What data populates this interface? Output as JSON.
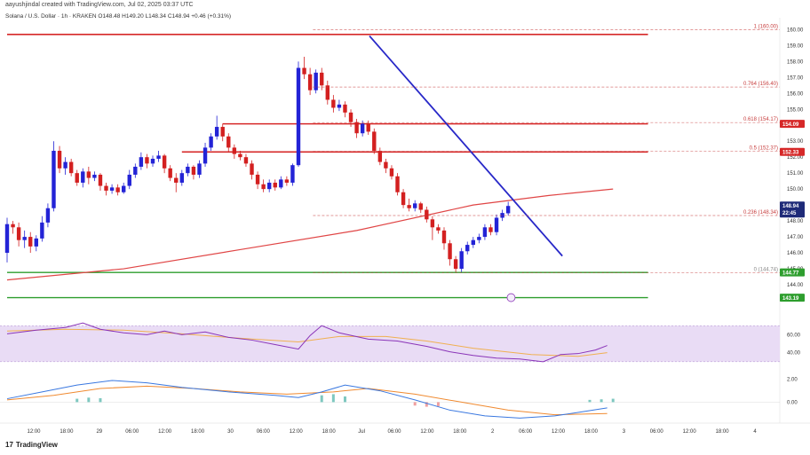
{
  "header": {
    "created_by": "aayushjindal created with TradingView.com, Jul 02, 2025 03:37 UTC",
    "symbol": "Solana / U.S. Dollar · 1h · KRAKEN",
    "ohlc": "O148.48 H149.20 L148.34 C148.94 +0.46 (+0.31%)"
  },
  "branding": {
    "logo": "17",
    "name": "TradingView"
  },
  "colors": {
    "up": "#2323d6",
    "down": "#d32020",
    "ma": "#e04545",
    "resistance": "#d62828",
    "support": "#2e9e2e",
    "trendline": "#2828c8",
    "fib": "#c84040",
    "rsi_band": "#e9dcf5",
    "rsi_line": "#8a34b8",
    "rsi_ma": "#f0b050",
    "macd_line": "#3a78e0",
    "signal_line": "#f08a30",
    "tag_dark": "#1e2a78"
  },
  "chart_data": {
    "type": "candlestick",
    "x_ticks": [
      "12:00",
      "18:00",
      "29",
      "06:00",
      "12:00",
      "18:00",
      "30",
      "06:00",
      "12:00",
      "18:00",
      "Jul",
      "06:00",
      "12:00",
      "18:00",
      "2",
      "06:00",
      "12:00",
      "18:00",
      "3",
      "06:00",
      "12:00",
      "18:00",
      "4"
    ],
    "y_ticks": [
      160.0,
      159.0,
      158.0,
      157.0,
      156.0,
      155.0,
      154.0,
      153.0,
      152.0,
      151.0,
      150.0,
      149.0,
      148.0,
      147.0,
      146.0,
      145.0,
      144.0
    ],
    "y_tick_labels": [
      "160.00",
      "159.00",
      "158.00",
      "157.00",
      "156.00",
      "155.00",
      "154.00",
      "153.00",
      "152.00",
      "151.00",
      "150.00",
      "149.00",
      "148.00",
      "147.00",
      "146.00",
      "145.00",
      "144.00"
    ],
    "ylim": [
      143.5,
      160.3
    ],
    "candles": [
      [
        146.0,
        147.8,
        148.2,
        145.4
      ],
      [
        147.8,
        147.6,
        148.0,
        147.2
      ],
      [
        147.6,
        146.8,
        147.9,
        146.4
      ],
      [
        146.8,
        147.0,
        147.4,
        146.3
      ],
      [
        147.0,
        146.4,
        147.3,
        146.0
      ],
      [
        146.4,
        146.9,
        147.1,
        146.1
      ],
      [
        146.9,
        147.9,
        148.3,
        146.7
      ],
      [
        147.9,
        148.8,
        149.1,
        147.6
      ],
      [
        148.8,
        152.4,
        153.0,
        148.6
      ],
      [
        152.4,
        151.3,
        152.7,
        151.0
      ],
      [
        151.3,
        151.7,
        152.0,
        150.9
      ],
      [
        151.7,
        151.0,
        151.9,
        150.8
      ],
      [
        151.0,
        150.4,
        151.2,
        150.2
      ],
      [
        150.4,
        151.1,
        151.3,
        150.1
      ],
      [
        151.1,
        150.7,
        151.4,
        150.3
      ],
      [
        150.7,
        150.9,
        151.1,
        150.5
      ],
      [
        150.9,
        150.2,
        151.0,
        149.9
      ],
      [
        150.2,
        149.9,
        150.4,
        149.6
      ],
      [
        149.9,
        150.1,
        150.3,
        149.7
      ],
      [
        150.1,
        149.8,
        150.3,
        149.6
      ],
      [
        149.8,
        150.2,
        150.4,
        149.7
      ],
      [
        150.2,
        150.9,
        151.2,
        150.0
      ],
      [
        150.9,
        151.4,
        151.6,
        150.7
      ],
      [
        151.4,
        152.0,
        152.3,
        151.2
      ],
      [
        152.0,
        151.6,
        152.2,
        151.3
      ],
      [
        151.6,
        151.9,
        152.1,
        151.4
      ],
      [
        151.9,
        152.1,
        152.4,
        151.7
      ],
      [
        152.1,
        151.3,
        152.2,
        151.0
      ],
      [
        151.3,
        150.7,
        151.5,
        150.5
      ],
      [
        150.7,
        150.4,
        151.0,
        149.8
      ],
      [
        150.4,
        151.0,
        151.2,
        150.2
      ],
      [
        151.0,
        151.4,
        151.6,
        150.8
      ],
      [
        151.4,
        150.9,
        151.5,
        150.6
      ],
      [
        150.9,
        151.6,
        151.8,
        150.7
      ],
      [
        151.6,
        152.6,
        152.9,
        151.4
      ],
      [
        152.6,
        153.3,
        153.5,
        152.4
      ],
      [
        153.3,
        153.9,
        154.6,
        153.1
      ],
      [
        153.9,
        153.3,
        154.1,
        153.0
      ],
      [
        153.3,
        152.6,
        153.5,
        152.3
      ],
      [
        152.6,
        152.2,
        152.8,
        151.9
      ],
      [
        152.2,
        152.0,
        152.4,
        151.8
      ],
      [
        152.0,
        151.6,
        152.2,
        151.4
      ],
      [
        151.6,
        150.9,
        151.8,
        150.6
      ],
      [
        150.9,
        150.3,
        151.1,
        150.0
      ],
      [
        150.3,
        150.0,
        150.6,
        149.8
      ],
      [
        150.0,
        150.4,
        150.6,
        149.8
      ],
      [
        150.4,
        150.1,
        150.6,
        149.9
      ],
      [
        150.1,
        150.6,
        150.8,
        150.0
      ],
      [
        150.6,
        150.4,
        150.8,
        150.2
      ],
      [
        150.4,
        151.5,
        151.6,
        150.2
      ],
      [
        151.5,
        157.6,
        158.0,
        151.4
      ],
      [
        157.6,
        157.2,
        158.3,
        156.9
      ],
      [
        157.2,
        156.2,
        157.6,
        155.9
      ],
      [
        156.2,
        157.3,
        157.5,
        156.0
      ],
      [
        157.3,
        156.5,
        157.6,
        156.2
      ],
      [
        156.5,
        155.6,
        156.8,
        155.3
      ],
      [
        155.6,
        155.1,
        155.9,
        154.8
      ],
      [
        155.1,
        155.3,
        155.6,
        154.9
      ],
      [
        155.3,
        154.8,
        155.5,
        154.5
      ],
      [
        154.8,
        154.2,
        155.0,
        153.9
      ],
      [
        154.2,
        153.5,
        154.4,
        153.2
      ],
      [
        153.5,
        154.1,
        154.3,
        153.3
      ],
      [
        154.1,
        153.6,
        154.3,
        153.4
      ],
      [
        153.6,
        152.4,
        153.8,
        152.2
      ],
      [
        152.4,
        151.7,
        152.6,
        151.5
      ],
      [
        151.7,
        151.3,
        151.9,
        151.0
      ],
      [
        151.3,
        150.8,
        151.5,
        150.6
      ],
      [
        150.8,
        149.8,
        151.0,
        149.6
      ],
      [
        149.8,
        149.0,
        150.0,
        148.8
      ],
      [
        149.0,
        148.8,
        149.4,
        148.6
      ],
      [
        148.8,
        149.1,
        149.3,
        148.6
      ],
      [
        149.1,
        148.7,
        149.2,
        148.5
      ],
      [
        148.7,
        148.1,
        148.9,
        147.9
      ],
      [
        148.1,
        147.6,
        148.3,
        146.8
      ],
      [
        147.6,
        147.4,
        147.8,
        147.2
      ],
      [
        147.4,
        146.6,
        147.6,
        146.2
      ],
      [
        146.6,
        145.6,
        146.8,
        145.2
      ],
      [
        145.6,
        145.0,
        145.8,
        144.8
      ],
      [
        145.0,
        146.1,
        146.3,
        144.8
      ],
      [
        146.1,
        146.5,
        146.7,
        145.9
      ],
      [
        146.5,
        146.8,
        147.0,
        146.3
      ],
      [
        146.8,
        147.0,
        147.2,
        146.6
      ],
      [
        147.0,
        147.6,
        147.8,
        146.8
      ],
      [
        147.6,
        147.3,
        147.8,
        147.1
      ],
      [
        147.3,
        148.2,
        148.4,
        147.1
      ],
      [
        148.2,
        148.5,
        148.7,
        148.0
      ],
      [
        148.48,
        148.94,
        149.2,
        148.34
      ]
    ],
    "moving_average": [
      [
        0,
        144.3
      ],
      [
        20,
        145.0
      ],
      [
        40,
        146.2
      ],
      [
        60,
        147.4
      ],
      [
        80,
        149.0
      ],
      [
        93,
        149.6
      ],
      [
        104,
        150.0
      ]
    ],
    "trendline": [
      [
        62.2,
        159.6
      ],
      [
        95.3,
        145.8
      ]
    ],
    "resistance_lines": [
      {
        "from": 0,
        "to": 110,
        "value": 159.7
      },
      {
        "from": 37,
        "to": 110,
        "value": 154.09
      },
      {
        "from": 30,
        "to": 110,
        "value": 152.33
      }
    ],
    "support_lines": [
      {
        "from": 0,
        "to": 110,
        "value": 144.77
      },
      {
        "from": 0,
        "to": 110,
        "value": 143.19
      }
    ],
    "fib_levels": [
      {
        "ratio": "1",
        "value": 160.0,
        "label": "1 (160.00)"
      },
      {
        "ratio": "0.764",
        "value": 156.4,
        "label": "0.764 (156.40)"
      },
      {
        "ratio": "0.618",
        "value": 154.17,
        "label": "0.618 (154.17)"
      },
      {
        "ratio": "0.5",
        "value": 152.37,
        "label": "0.5 (152.37)"
      },
      {
        "ratio": "0.236",
        "value": 148.34,
        "label": "0.236 (148.34)"
      },
      {
        "ratio": "0",
        "value": 144.74,
        "label": "0 (144.74)"
      }
    ],
    "price_tags": [
      {
        "value": 154.09,
        "label": "154.09",
        "style": "resistance"
      },
      {
        "value": 152.33,
        "label": "152.33",
        "style": "resistance"
      },
      {
        "value": 148.94,
        "label": "148.94",
        "style": "current",
        "sub": "22:45"
      },
      {
        "value": 144.77,
        "label": "144.77",
        "style": "support"
      },
      {
        "value": 143.19,
        "label": "143.19",
        "style": "support"
      }
    ],
    "rsi": {
      "ylim": [
        20,
        80
      ],
      "band": [
        30,
        70
      ],
      "ticks": [
        60,
        40
      ],
      "tick_labels": [
        "60.00",
        "40.00"
      ],
      "line": [
        [
          0,
          61
        ],
        [
          5,
          65
        ],
        [
          10,
          68
        ],
        [
          13,
          73
        ],
        [
          16,
          66
        ],
        [
          20,
          62
        ],
        [
          24,
          60
        ],
        [
          27,
          64
        ],
        [
          30,
          60
        ],
        [
          34,
          63
        ],
        [
          38,
          57
        ],
        [
          42,
          54
        ],
        [
          46,
          49
        ],
        [
          50,
          44
        ],
        [
          52,
          59
        ],
        [
          54,
          70
        ],
        [
          57,
          62
        ],
        [
          62,
          55
        ],
        [
          67,
          53
        ],
        [
          72,
          47
        ],
        [
          76,
          41
        ],
        [
          80,
          37
        ],
        [
          84,
          34
        ],
        [
          88,
          33
        ],
        [
          92,
          30
        ],
        [
          95,
          38
        ],
        [
          98,
          39
        ],
        [
          101,
          43
        ],
        [
          103,
          48
        ]
      ],
      "ma": [
        [
          0,
          64
        ],
        [
          10,
          66
        ],
        [
          20,
          65
        ],
        [
          30,
          61
        ],
        [
          40,
          56
        ],
        [
          50,
          52
        ],
        [
          57,
          58
        ],
        [
          65,
          58
        ],
        [
          72,
          53
        ],
        [
          80,
          45
        ],
        [
          90,
          38
        ],
        [
          98,
          36
        ],
        [
          103,
          40
        ]
      ]
    },
    "macd": {
      "ylim": [
        -1.6,
        2.6
      ],
      "ticks": [
        2.0,
        0.0
      ],
      "tick_labels": [
        "2.00",
        "0.00"
      ],
      "macd_line": [
        [
          0,
          0.3
        ],
        [
          6,
          0.9
        ],
        [
          12,
          1.5
        ],
        [
          18,
          1.9
        ],
        [
          24,
          1.7
        ],
        [
          30,
          1.3
        ],
        [
          38,
          0.9
        ],
        [
          46,
          0.6
        ],
        [
          50,
          0.4
        ],
        [
          54,
          0.9
        ],
        [
          58,
          1.5
        ],
        [
          64,
          1.0
        ],
        [
          70,
          0.2
        ],
        [
          76,
          -0.7
        ],
        [
          82,
          -1.2
        ],
        [
          88,
          -1.4
        ],
        [
          94,
          -1.2
        ],
        [
          98,
          -0.9
        ],
        [
          103,
          -0.5
        ]
      ],
      "signal_line": [
        [
          0,
          0.2
        ],
        [
          8,
          0.6
        ],
        [
          16,
          1.2
        ],
        [
          24,
          1.4
        ],
        [
          32,
          1.2
        ],
        [
          40,
          0.9
        ],
        [
          48,
          0.7
        ],
        [
          56,
          0.9
        ],
        [
          62,
          1.2
        ],
        [
          70,
          0.7
        ],
        [
          78,
          0.0
        ],
        [
          86,
          -0.7
        ],
        [
          94,
          -1.1
        ],
        [
          103,
          -1.0
        ]
      ],
      "histogram": [
        [
          12,
          0.3
        ],
        [
          14,
          0.4
        ],
        [
          16,
          0.35
        ],
        [
          54,
          0.6
        ],
        [
          56,
          0.7
        ],
        [
          58,
          0.5
        ],
        [
          70,
          -0.3
        ],
        [
          72,
          -0.4
        ],
        [
          74,
          -0.35
        ],
        [
          100,
          0.2
        ],
        [
          102,
          0.25
        ],
        [
          104,
          0.3
        ]
      ]
    }
  }
}
